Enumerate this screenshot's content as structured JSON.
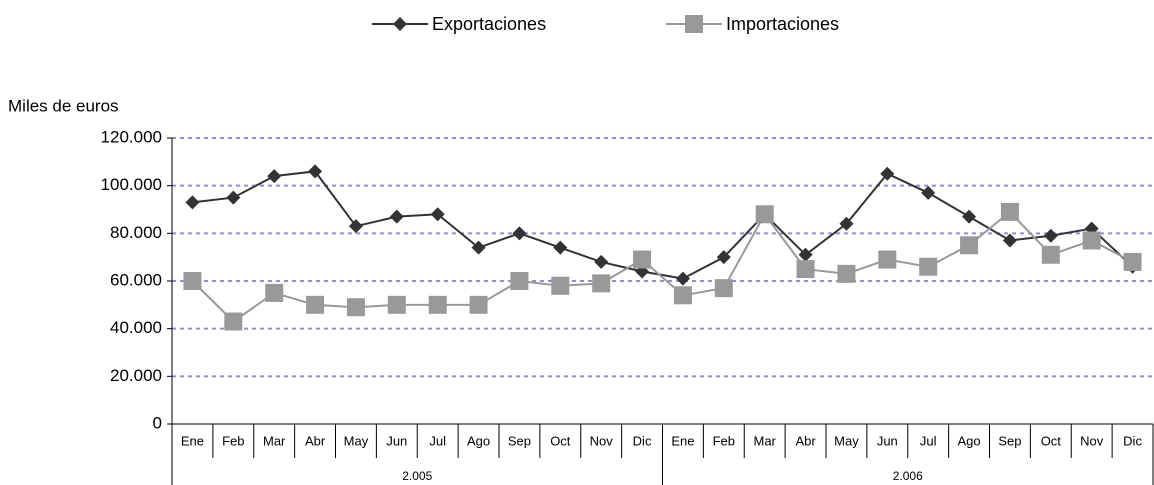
{
  "chart_data": {
    "type": "line",
    "y_label": "Miles de euros",
    "categories": [
      "Ene",
      "Feb",
      "Mar",
      "Abr",
      "May",
      "Jun",
      "Jul",
      "Ago",
      "Sep",
      "Oct",
      "Nov",
      "Dic",
      "Ene",
      "Feb",
      "Mar",
      "Abr",
      "May",
      "Jun",
      "Jul",
      "Ago",
      "Sep",
      "Oct",
      "Nov",
      "Dic"
    ],
    "x_groups": [
      "2.005",
      "2.006"
    ],
    "series": [
      {
        "name": "Exportaciones",
        "color": "#333333",
        "marker": "diamond",
        "values": [
          93000,
          95000,
          104000,
          106000,
          83000,
          87000,
          88000,
          74000,
          80000,
          74000,
          68000,
          64000,
          61000,
          70000,
          88000,
          71000,
          84000,
          105000,
          97000,
          87000,
          77000,
          79000,
          82000,
          66000
        ]
      },
      {
        "name": "Importaciones",
        "color": "#999999",
        "marker": "square",
        "values": [
          60000,
          43000,
          55000,
          50000,
          49000,
          50000,
          50000,
          50000,
          60000,
          58000,
          59000,
          69000,
          54000,
          57000,
          88000,
          65000,
          63000,
          69000,
          66000,
          75000,
          89000,
          71000,
          77000,
          68000
        ]
      }
    ],
    "ylim": [
      0,
      120000
    ],
    "yticks": [
      {
        "value": 0,
        "label": "0"
      },
      {
        "value": 20000,
        "label": "20.000"
      },
      {
        "value": 40000,
        "label": "40.000"
      },
      {
        "value": 60000,
        "label": "60.000"
      },
      {
        "value": 80000,
        "label": "80.000"
      },
      {
        "value": 100000,
        "label": "100.000"
      },
      {
        "value": 120000,
        "label": "120.000"
      }
    ],
    "grid": true,
    "legend": "top"
  }
}
